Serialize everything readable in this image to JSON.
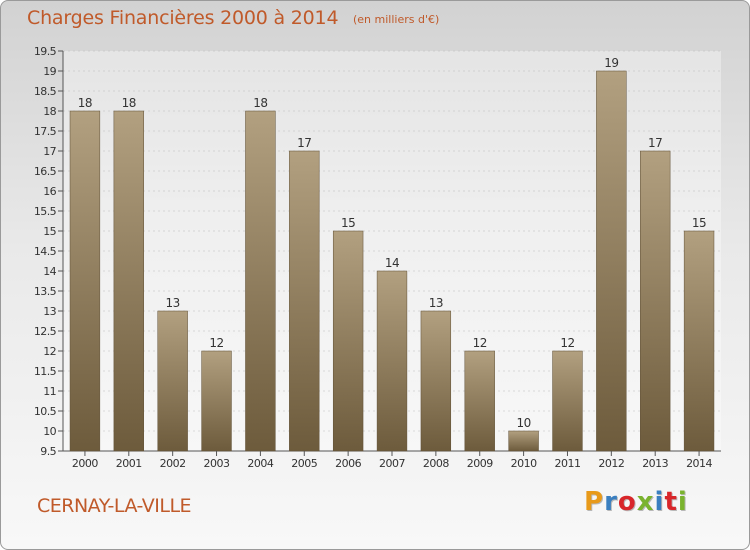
{
  "header": {
    "title": "Charges Financières 2000 à 2014",
    "unit": "(en milliers d'€)"
  },
  "footer": {
    "place": "CERNAY-LA-VILLE",
    "logo_text": "Proxiti",
    "logo_colors": [
      "#e89a1a",
      "#3a7fc0",
      "#d8262a",
      "#7ab32e",
      "#3a7fc0",
      "#d8262a",
      "#7ab32e"
    ]
  },
  "colors": {
    "title": "#c05a2a",
    "bar_top": "#b2a080",
    "bar_bottom": "#6d5b3c",
    "axis": "#555555",
    "grid": "#bbbbbb"
  },
  "chart_data": {
    "type": "bar",
    "categories": [
      "2000",
      "2001",
      "2002",
      "2003",
      "2004",
      "2005",
      "2006",
      "2007",
      "2008",
      "2009",
      "2010",
      "2011",
      "2012",
      "2013",
      "2014"
    ],
    "values": [
      18,
      18,
      13,
      12,
      18,
      17,
      15,
      14,
      13,
      12,
      10,
      12,
      19,
      17,
      15
    ],
    "data_labels": [
      "18",
      "18",
      "13",
      "12",
      "18",
      "17",
      "15",
      "14",
      "13",
      "12",
      "10",
      "12",
      "19",
      "17",
      "15"
    ],
    "title": "Charges Financières 2000 à 2014",
    "subtitle": "(en milliers d'€)",
    "xlabel": "",
    "ylabel": "",
    "ylim": [
      9.5,
      19.5
    ],
    "yticks": [
      9.5,
      10,
      10.5,
      11,
      11.5,
      12,
      12.5,
      13,
      13.5,
      14,
      14.5,
      15,
      15.5,
      16,
      16.5,
      17,
      17.5,
      18,
      18.5,
      19,
      19.5
    ],
    "ytick_labels": [
      "9.5",
      "10",
      "10.5",
      "11",
      "11.5",
      "12",
      "12.5",
      "13",
      "13.5",
      "14",
      "14.5",
      "15",
      "15.5",
      "16",
      "16.5",
      "17",
      "17.5",
      "18",
      "18.5",
      "19",
      "19.5"
    ],
    "grid": true,
    "legend": "none"
  }
}
